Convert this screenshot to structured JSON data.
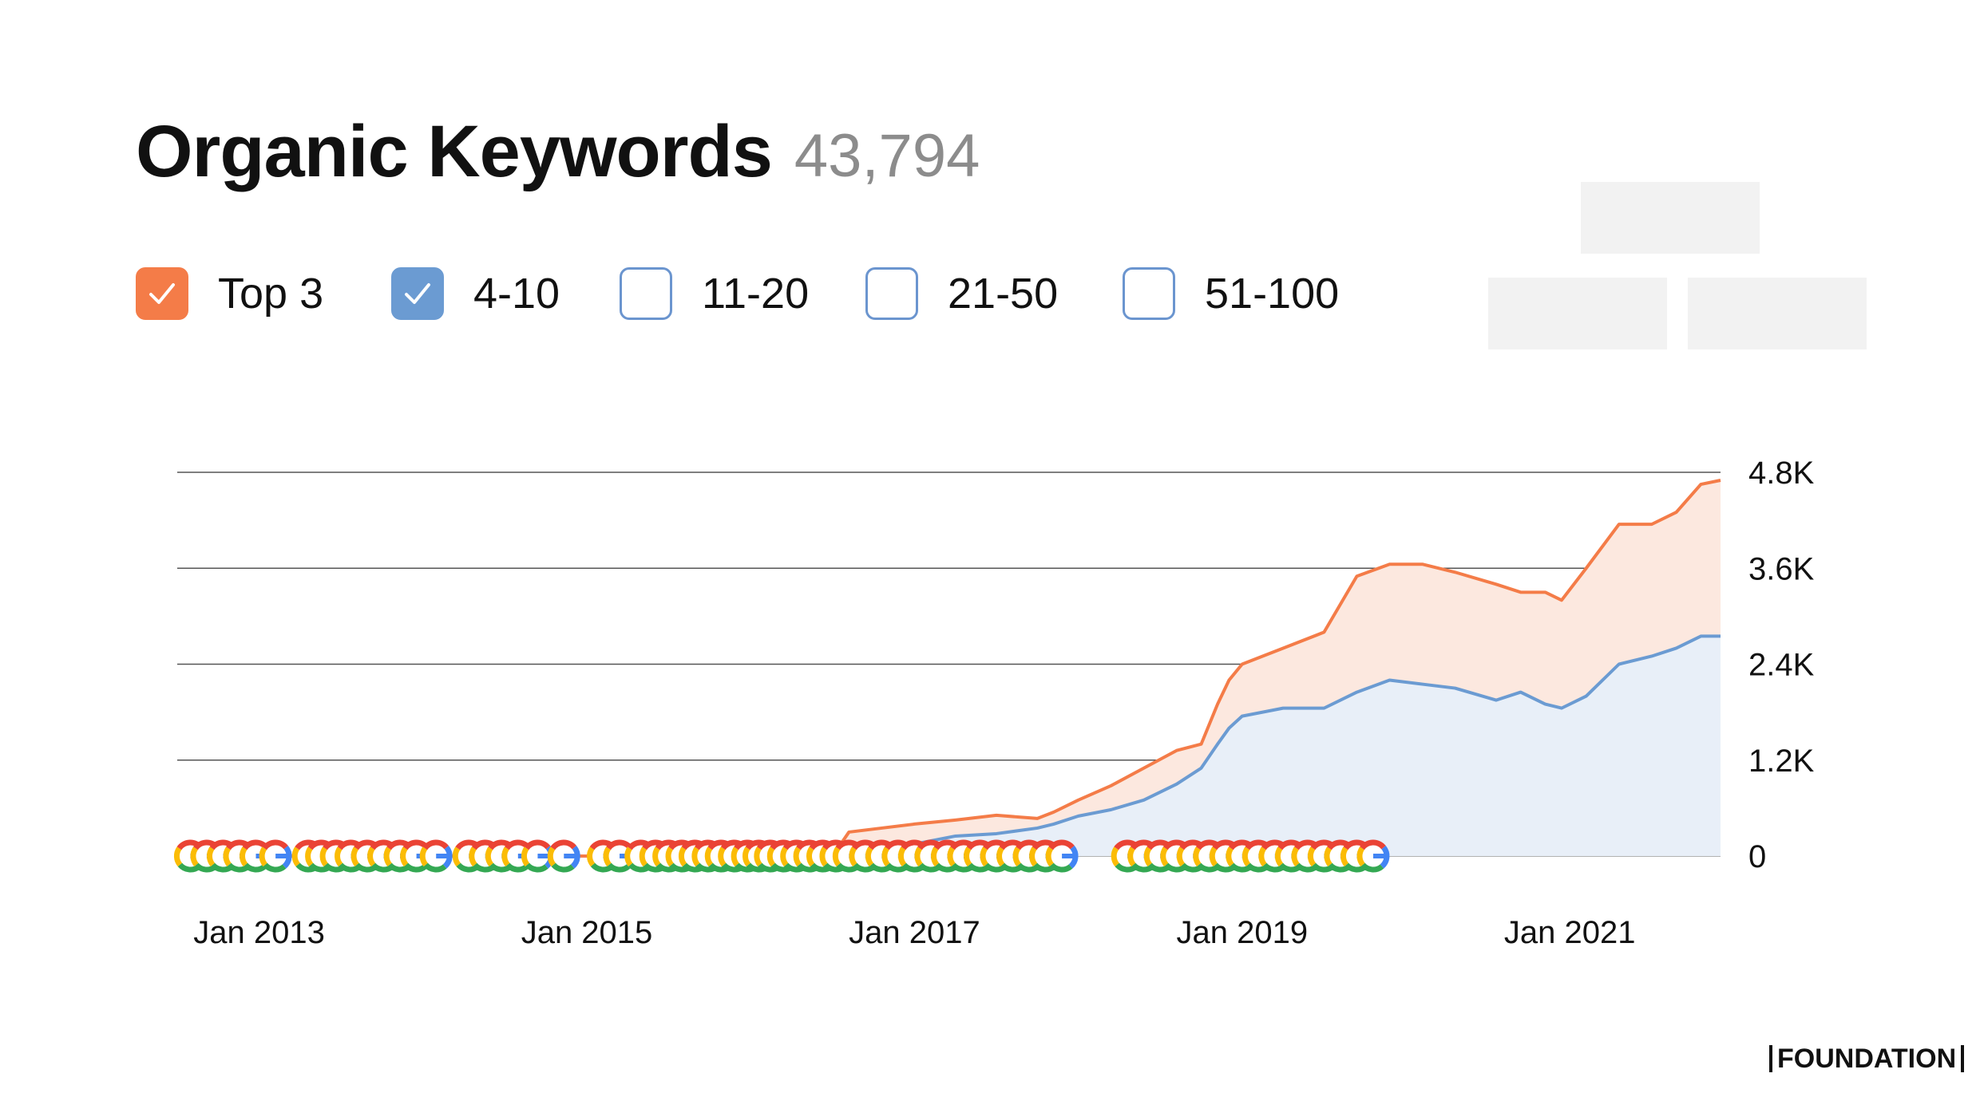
{
  "header": {
    "title": "Organic Keywords",
    "count": "43,794"
  },
  "filters": [
    {
      "label": "Top 3",
      "checked": true,
      "color": "#f47c48"
    },
    {
      "label": "4-10",
      "checked": true,
      "color": "#6b9bd2"
    },
    {
      "label": "11-20",
      "checked": false,
      "color": "#6b9bd2"
    },
    {
      "label": "21-50",
      "checked": false,
      "color": "#6b9bd2"
    },
    {
      "label": "51-100",
      "checked": false,
      "color": "#6b9bd2"
    }
  ],
  "icons": {
    "checkmark": "check-icon",
    "google_update_marker": "google-logo-icon"
  },
  "brand": "FOUNDATION",
  "chart_data": {
    "type": "area",
    "stacked": true,
    "title": "",
    "xlabel": "",
    "ylabel": "",
    "y_axis_position": "right",
    "grid": true,
    "ylim": [
      0,
      4800
    ],
    "xlim": [
      2012.5,
      2021.92
    ],
    "y_ticks": [
      {
        "value": 0,
        "label": "0"
      },
      {
        "value": 1200,
        "label": "1.2K"
      },
      {
        "value": 2400,
        "label": "2.4K"
      },
      {
        "value": 3600,
        "label": "3.6K"
      },
      {
        "value": 4800,
        "label": "4.8K"
      }
    ],
    "x_ticks": [
      {
        "value": 2013.0,
        "label": "Jan 2013"
      },
      {
        "value": 2015.0,
        "label": "Jan 2015"
      },
      {
        "value": 2017.0,
        "label": "Jan 2017"
      },
      {
        "value": 2019.0,
        "label": "Jan 2019"
      },
      {
        "value": 2021.0,
        "label": "Jan 2021"
      }
    ],
    "series": [
      {
        "name": "4-10",
        "color": "#6b9bd2",
        "fill": "#e8eff8",
        "x": [
          2012.5,
          2016.5,
          2016.8,
          2017.0,
          2017.25,
          2017.5,
          2017.75,
          2017.85,
          2018.0,
          2018.2,
          2018.4,
          2018.6,
          2018.75,
          2018.85,
          2018.92,
          2019.0,
          2019.25,
          2019.5,
          2019.7,
          2019.9,
          2020.1,
          2020.3,
          2020.55,
          2020.7,
          2020.85,
          2020.95,
          2021.1,
          2021.3,
          2021.5,
          2021.65,
          2021.8,
          2021.92
        ],
        "y": [
          0,
          0,
          100,
          150,
          250,
          280,
          350,
          400,
          500,
          580,
          700,
          900,
          1100,
          1400,
          1600,
          1750,
          1850,
          1850,
          2050,
          2200,
          2150,
          2100,
          1950,
          2050,
          1900,
          1850,
          2000,
          2400,
          2500,
          2600,
          2750,
          2750
        ]
      },
      {
        "name": "Top 3",
        "color": "#f47c48",
        "fill": "#fce8df",
        "x": [
          2012.5,
          2016.5,
          2016.6,
          2017.0,
          2017.25,
          2017.5,
          2017.75,
          2017.85,
          2018.0,
          2018.2,
          2018.4,
          2018.6,
          2018.75,
          2018.85,
          2018.92,
          2019.0,
          2019.25,
          2019.5,
          2019.7,
          2019.9,
          2020.1,
          2020.3,
          2020.55,
          2020.7,
          2020.85,
          2020.95,
          2021.1,
          2021.3,
          2021.5,
          2021.65,
          2021.8,
          2021.92
        ],
        "y": [
          0,
          0,
          200,
          250,
          200,
          230,
          120,
          150,
          200,
          300,
          400,
          420,
          300,
          500,
          600,
          650,
          750,
          950,
          1450,
          1450,
          1500,
          1450,
          1450,
          1250,
          1400,
          1350,
          1600,
          1750,
          1650,
          1700,
          1900,
          1950
        ]
      }
    ],
    "google_updates": [
      2012.58,
      2012.68,
      2012.78,
      2012.88,
      2012.98,
      2013.1,
      2013.3,
      2013.38,
      2013.47,
      2013.56,
      2013.66,
      2013.76,
      2013.86,
      2013.96,
      2014.08,
      2014.28,
      2014.38,
      2014.48,
      2014.58,
      2014.7,
      2014.86,
      2015.1,
      2015.2,
      2015.33,
      2015.42,
      2015.5,
      2015.58,
      2015.66,
      2015.74,
      2015.82,
      2015.9,
      2015.98,
      2016.05,
      2016.12,
      2016.2,
      2016.28,
      2016.36,
      2016.44,
      2016.52,
      2016.6,
      2016.7,
      2016.8,
      2016.9,
      2017.0,
      2017.1,
      2017.2,
      2017.3,
      2017.4,
      2017.5,
      2017.6,
      2017.7,
      2017.8,
      2017.9,
      2018.3,
      2018.4,
      2018.5,
      2018.6,
      2018.7,
      2018.8,
      2018.9,
      2019.0,
      2019.1,
      2019.2,
      2019.3,
      2019.4,
      2019.5,
      2019.6,
      2019.7,
      2019.8
    ]
  }
}
